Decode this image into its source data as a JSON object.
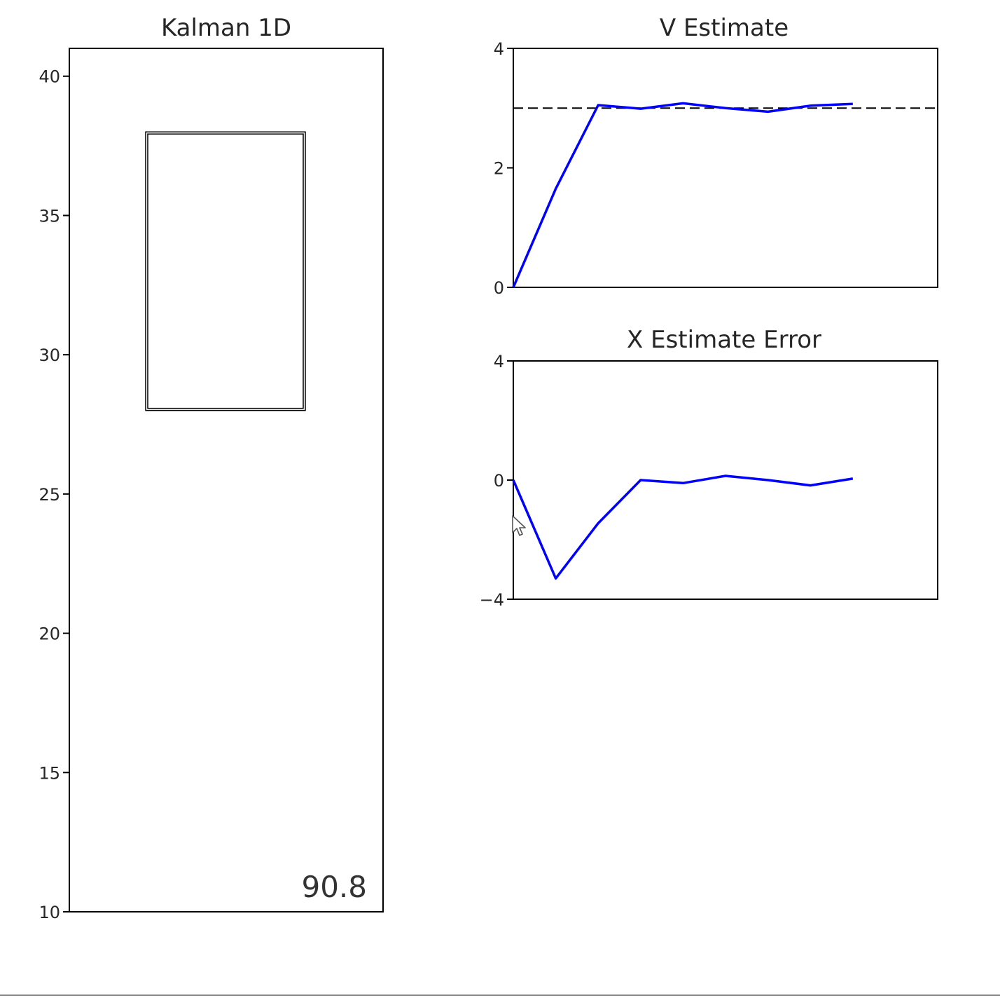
{
  "chart_data": [
    {
      "id": "kalman",
      "type": "other",
      "title": "Kalman 1D",
      "ylim": [
        10,
        41
      ],
      "yticks": [
        10,
        15,
        20,
        25,
        30,
        35,
        40
      ],
      "box": {
        "y_bottom": 28,
        "y_top": 38
      },
      "value_text": "90.8"
    },
    {
      "id": "v",
      "type": "line",
      "title": "V Estimate",
      "xlim": [
        0,
        10
      ],
      "ylim": [
        0,
        4
      ],
      "yticks": [
        0,
        2,
        4
      ],
      "reference_line": {
        "y": 3,
        "style": "dashed",
        "color": "#000000"
      },
      "series": [
        {
          "color": "#0000ff",
          "x": [
            0,
            1,
            2,
            3,
            4,
            5,
            6,
            7,
            8
          ],
          "y": [
            0,
            1.65,
            3.05,
            2.99,
            3.08,
            3.0,
            2.94,
            3.04,
            3.07
          ]
        }
      ]
    },
    {
      "id": "xerr",
      "type": "line",
      "title": "X Estimate Error",
      "xlim": [
        0,
        10
      ],
      "ylim": [
        -4,
        4
      ],
      "yticks": [
        -4,
        0,
        4
      ],
      "series": [
        {
          "color": "#0000ff",
          "x": [
            0,
            1,
            2,
            3,
            4,
            5,
            6,
            7,
            8
          ],
          "y": [
            0,
            -3.3,
            -1.45,
            0.0,
            -0.1,
            0.14,
            0.0,
            -0.18,
            0.05
          ]
        }
      ]
    }
  ],
  "ui": {
    "cursor_icon": "arrow-pointer"
  }
}
